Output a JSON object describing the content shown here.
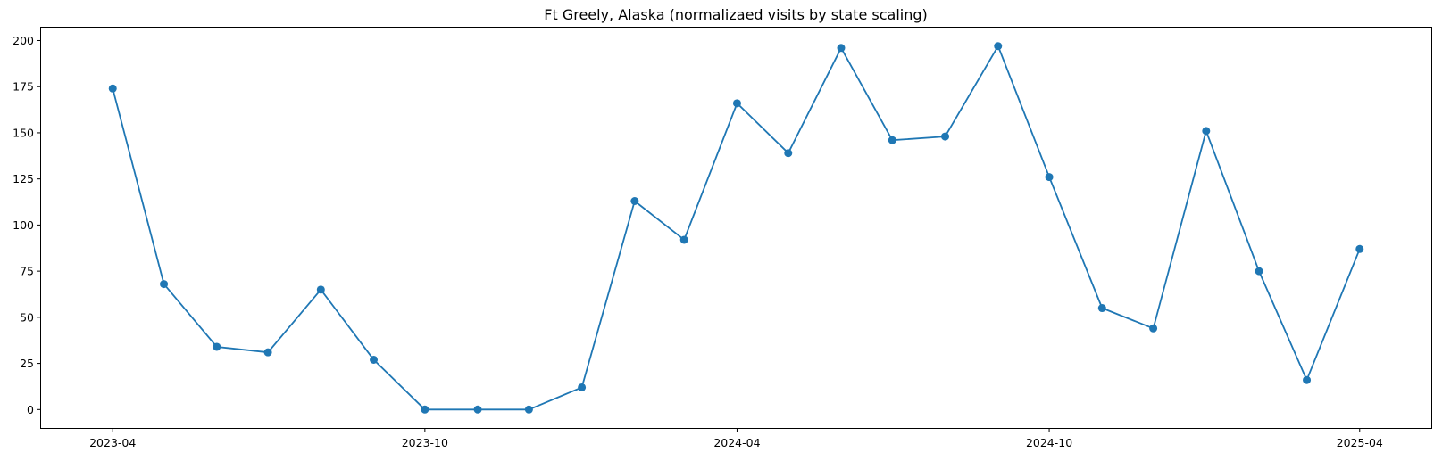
{
  "chart_data": {
    "type": "line",
    "title": "Ft Greely, Alaska (normalizaed visits by state scaling)",
    "xlabel": "",
    "ylabel": "",
    "x_tick_labels": [
      "2023-04",
      "2023-10",
      "2024-04",
      "2024-10",
      "2025-04"
    ],
    "y_tick_labels": [
      "0",
      "25",
      "50",
      "75",
      "100",
      "125",
      "150",
      "175",
      "200"
    ],
    "y_ticks": [
      0,
      25,
      50,
      75,
      100,
      125,
      150,
      175,
      200
    ],
    "ylim": [
      -10,
      207
    ],
    "xlim": [
      "2023-02-18",
      "2025-05-13"
    ],
    "grid": false,
    "marker": "circle",
    "color": "#1f77b4",
    "series": [
      {
        "x": [
          "2023-04-01",
          "2023-05-01",
          "2023-06-01",
          "2023-07-01",
          "2023-08-01",
          "2023-09-01",
          "2023-10-01",
          "2023-11-01",
          "2023-12-01",
          "2024-01-01",
          "2024-02-01",
          "2024-03-01",
          "2024-04-01",
          "2024-05-01",
          "2024-06-01",
          "2024-07-01",
          "2024-08-01",
          "2024-09-01",
          "2024-10-01",
          "2024-11-01",
          "2024-12-01",
          "2025-01-01",
          "2025-02-01",
          "2025-03-01",
          "2025-04-01"
        ],
        "values": [
          174,
          68,
          34,
          31,
          65,
          27,
          0,
          0,
          0,
          12,
          113,
          92,
          166,
          139,
          196,
          146,
          148,
          197,
          126,
          55,
          44,
          151,
          75,
          16,
          87
        ]
      }
    ]
  }
}
